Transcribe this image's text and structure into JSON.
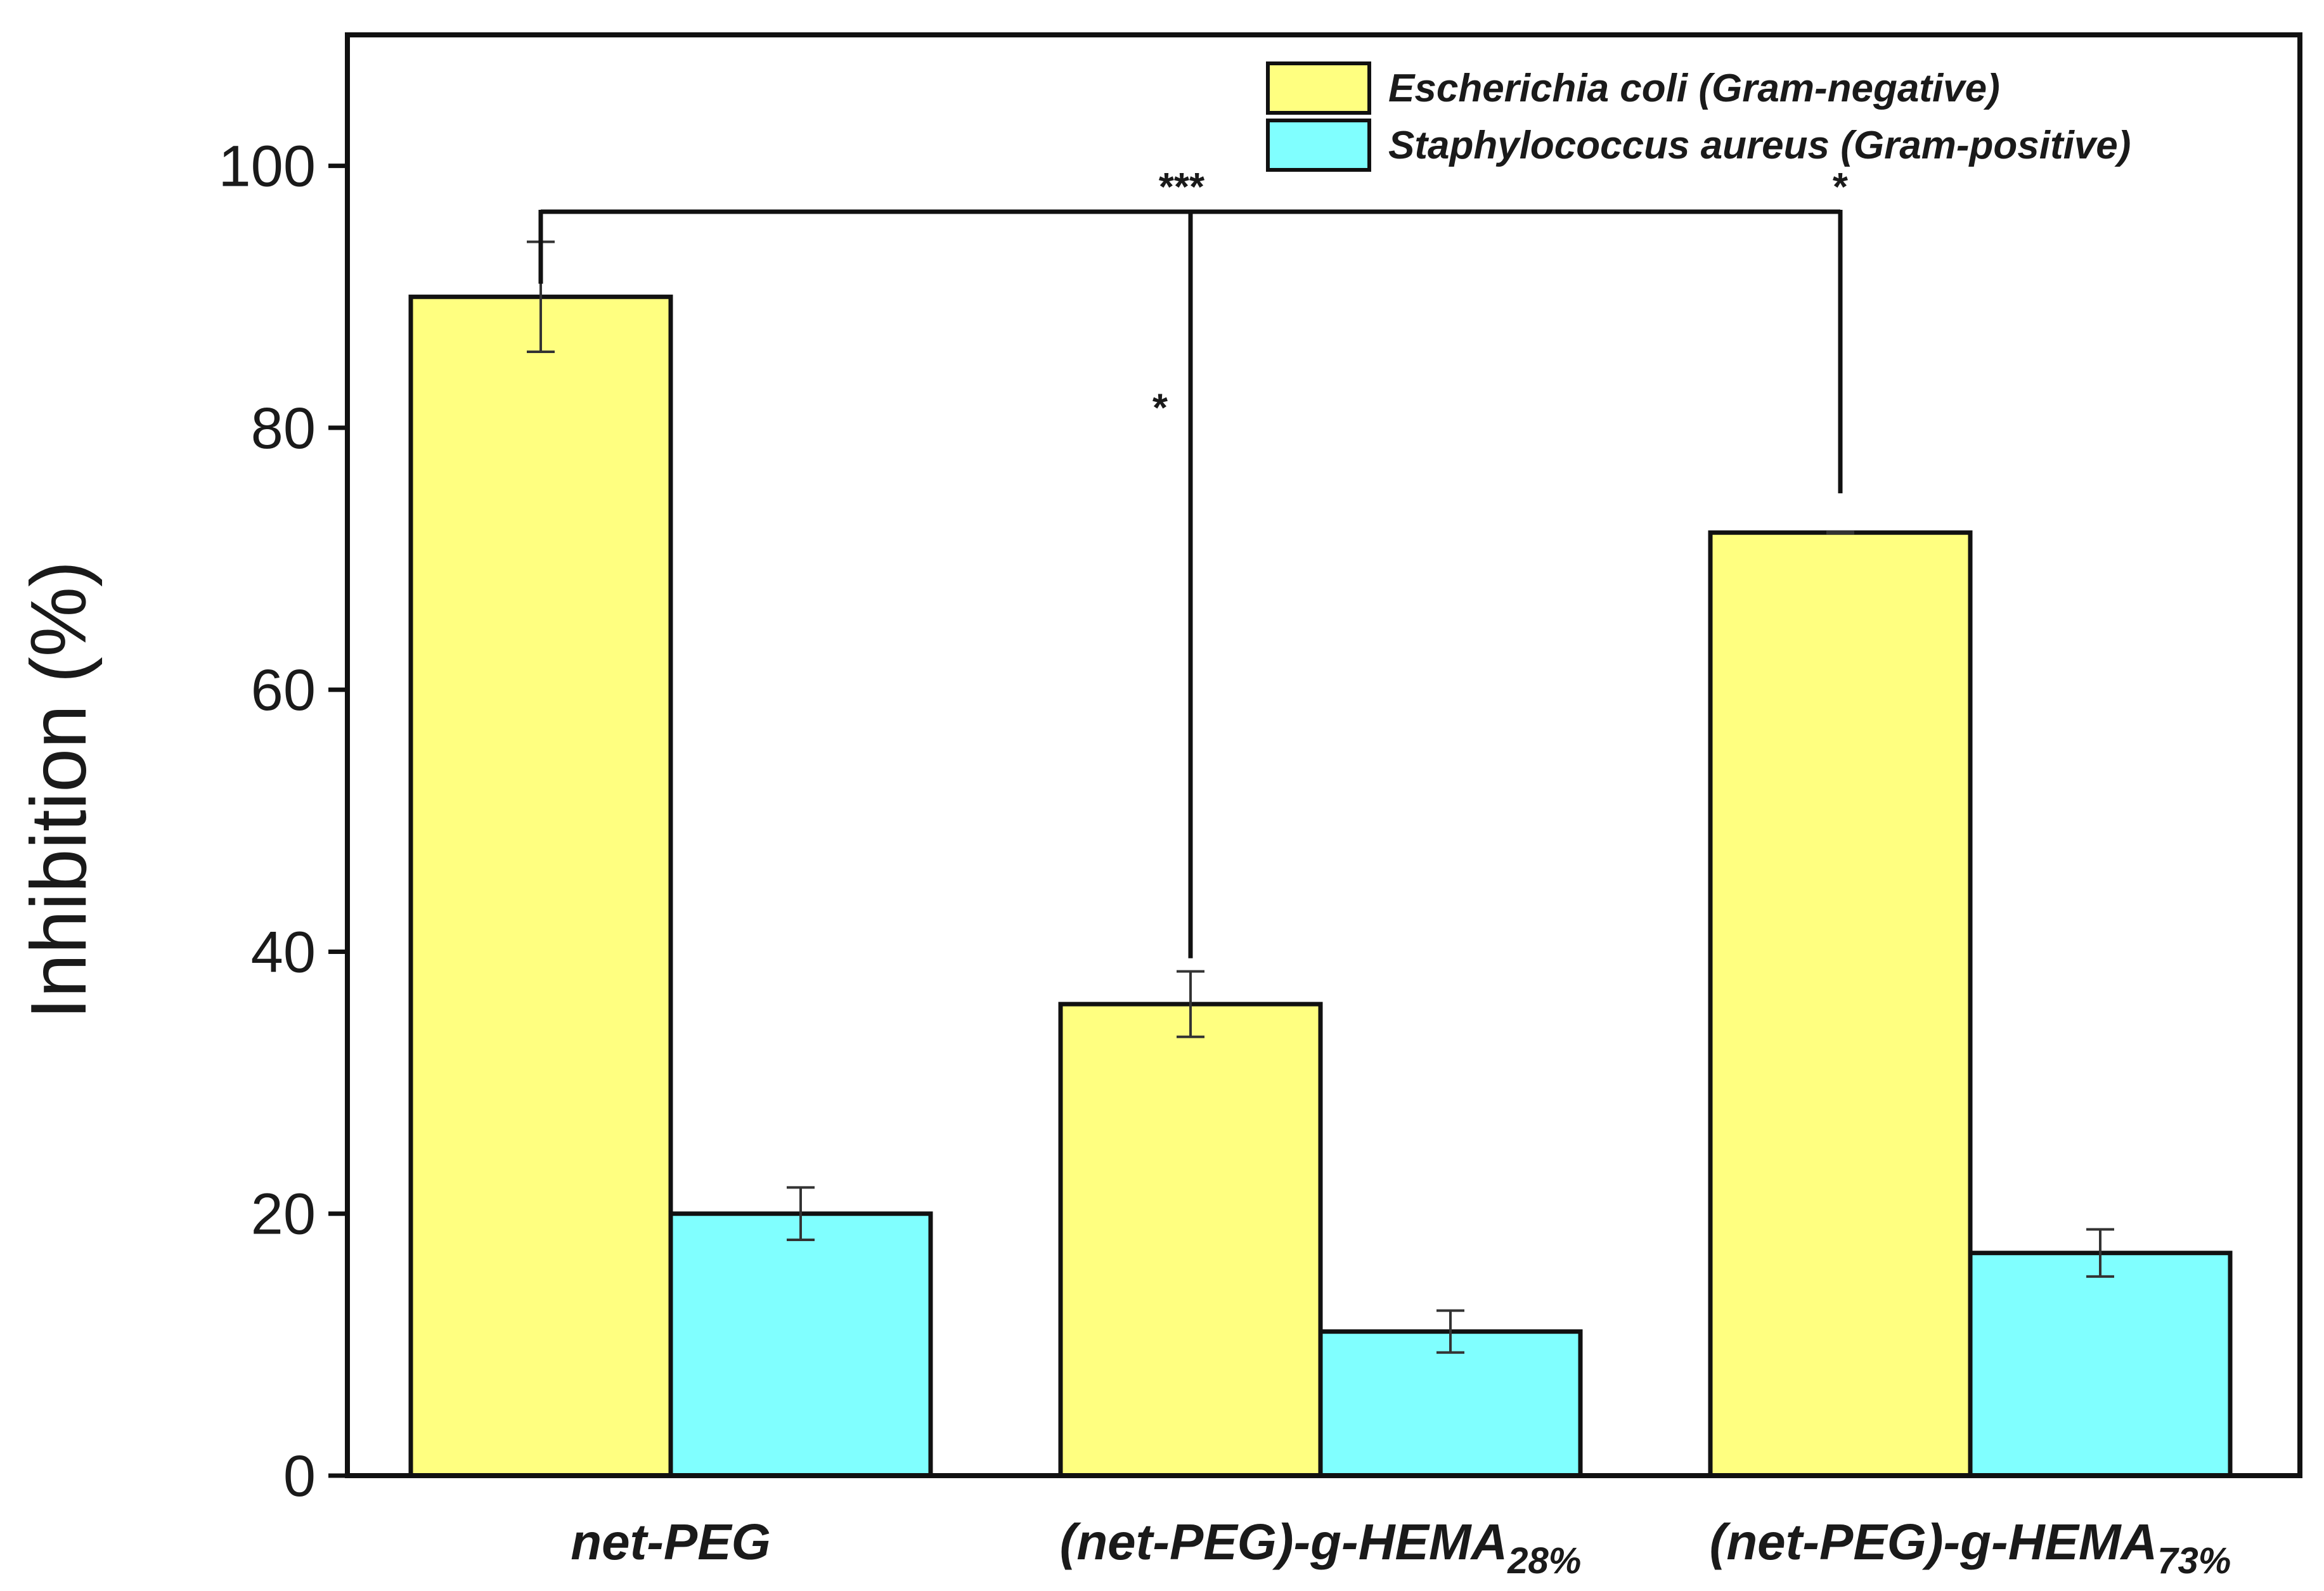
{
  "chart_data": {
    "type": "bar",
    "title": "",
    "xlabel": "",
    "ylabel": "Inhibition (%)",
    "ylim": [
      0,
      110
    ],
    "yticks": [
      0,
      20,
      40,
      60,
      80,
      100
    ],
    "grid": false,
    "legend_position": "top-right",
    "categories": [
      {
        "main": "net-PEG",
        "sub": ""
      },
      {
        "main": "(net-PEG)-g-HEMA",
        "sub": "28%"
      },
      {
        "main": "(net-PEG)-g-HEMA",
        "sub": "73%"
      }
    ],
    "series": [
      {
        "name": "Escherichia coli (Gram-negative)",
        "color": "#ffff80",
        "values": [
          90,
          36,
          72
        ],
        "errors": [
          4.2,
          2.5,
          0
        ]
      },
      {
        "name": "Staphylococcus aureus (Gram-positive)",
        "color": "#80ffff",
        "values": [
          20,
          11,
          17
        ],
        "errors": [
          2.0,
          1.6,
          1.8
        ]
      }
    ],
    "significance": {
      "bracket": {
        "from_category": 0,
        "to_category": 2,
        "level": 96.5
      },
      "drops": [
        {
          "category": 0,
          "series": 0,
          "bottom": 91
        },
        {
          "category": 1,
          "series": 0,
          "bottom": 39.5,
          "label": "***",
          "inner_label": "*"
        },
        {
          "category": 2,
          "series": 0,
          "bottom": 75,
          "label": "*"
        }
      ]
    }
  }
}
